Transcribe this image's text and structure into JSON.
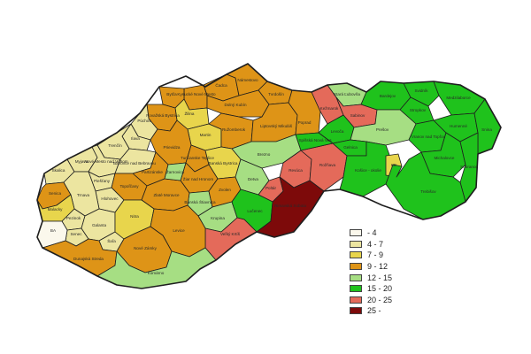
{
  "legend": {
    "items": [
      {
        "label": "- 4",
        "color": "#fbf8ec"
      },
      {
        "label": "4 - 7",
        "color": "#ece5a0"
      },
      {
        "label": "7 - 9",
        "color": "#e8d54c"
      },
      {
        "label": "9 - 12",
        "color": "#de9417"
      },
      {
        "label": "12 - 15",
        "color": "#a6de83"
      },
      {
        "label": "15 - 20",
        "color": "#1fc21c"
      },
      {
        "label": "20 - 25",
        "color": "#e46a5a"
      },
      {
        "label": "25 -",
        "color": "#7d0a0a"
      }
    ]
  },
  "districts": [
    {
      "name": "Čadca",
      "cls": 3
    },
    {
      "name": "Kysucké Nové Mesto",
      "cls": 3
    },
    {
      "name": "Námestovo",
      "cls": 3
    },
    {
      "name": "Tvrdošín",
      "cls": 3
    },
    {
      "name": "Bytča",
      "cls": 3
    },
    {
      "name": "Žilina",
      "cls": 2
    },
    {
      "name": "Dolný Kubín",
      "cls": 3
    },
    {
      "name": "Považská Bystrica",
      "cls": 3
    },
    {
      "name": "Púchov",
      "cls": 1
    },
    {
      "name": "Martin",
      "cls": 2
    },
    {
      "name": "Ružomberok",
      "cls": 3
    },
    {
      "name": "Liptovský Mikuláš",
      "cls": 3
    },
    {
      "name": "Poprad",
      "cls": 3
    },
    {
      "name": "Kežmarok",
      "cls": 6
    },
    {
      "name": "Stará Ľubovňa",
      "cls": 4
    },
    {
      "name": "Sabinov",
      "cls": 6
    },
    {
      "name": "Bardejov",
      "cls": 5
    },
    {
      "name": "Svidník",
      "cls": 5
    },
    {
      "name": "Stropkov",
      "cls": 5
    },
    {
      "name": "Medzilaborce",
      "cls": 5
    },
    {
      "name": "Ilava",
      "cls": 1
    },
    {
      "name": "Trenčín",
      "cls": 1
    },
    {
      "name": "Prievidza",
      "cls": 3
    },
    {
      "name": "Turčianske Teplice",
      "cls": 3
    },
    {
      "name": "Banská Bystrica",
      "cls": 2
    },
    {
      "name": "Brezno",
      "cls": 4
    },
    {
      "name": "Levoča",
      "cls": 5
    },
    {
      "name": "Prešov",
      "cls": 4
    },
    {
      "name": "Vranov nad Topľou",
      "cls": 5
    },
    {
      "name": "Humenné",
      "cls": 5
    },
    {
      "name": "Snina",
      "cls": 5
    },
    {
      "name": "Skalica",
      "cls": 1
    },
    {
      "name": "Myjava",
      "cls": 1
    },
    {
      "name": "Nové Mesto nad Váhom",
      "cls": 1
    },
    {
      "name": "Bánovce nad Bebravou",
      "cls": 1
    },
    {
      "name": "Partizánske",
      "cls": 3
    },
    {
      "name": "Žiar nad Hronom",
      "cls": 3
    },
    {
      "name": "Banská Štiavnica",
      "cls": 4
    },
    {
      "name": "Zvolen",
      "cls": 3
    },
    {
      "name": "Detva",
      "cls": 4
    },
    {
      "name": "Revúca",
      "cls": 6
    },
    {
      "name": "Rožňava",
      "cls": 6
    },
    {
      "name": "Spišská Nová Ves",
      "cls": 5
    },
    {
      "name": "Gelnica",
      "cls": 5
    },
    {
      "name": "Košice - okolie",
      "cls": 5
    },
    {
      "name": "KE",
      "cls": 2
    },
    {
      "name": "Michalovce",
      "cls": 5
    },
    {
      "name": "Sobrance",
      "cls": 5
    },
    {
      "name": "Trebišov",
      "cls": 5
    },
    {
      "name": "Senica",
      "cls": 3
    },
    {
      "name": "Piešťany",
      "cls": 1
    },
    {
      "name": "Topoľčany",
      "cls": 3
    },
    {
      "name": "Hlohovec",
      "cls": 1
    },
    {
      "name": "Trnava",
      "cls": 1
    },
    {
      "name": "Malacky",
      "cls": 2
    },
    {
      "name": "Pezinok",
      "cls": 1
    },
    {
      "name": "Senec",
      "cls": 1
    },
    {
      "name": "BA",
      "cls": 0
    },
    {
      "name": "Galanta",
      "cls": 1
    },
    {
      "name": "Šaľa",
      "cls": 1
    },
    {
      "name": "Zlaté Moravce",
      "cls": 3
    },
    {
      "name": "Nitra",
      "cls": 2
    },
    {
      "name": "Žarnovica",
      "cls": 4
    },
    {
      "name": "Krupina",
      "cls": 4
    },
    {
      "name": "Poltár",
      "cls": 6
    },
    {
      "name": "Lučenec",
      "cls": 5
    },
    {
      "name": "Veľký Krtíš",
      "cls": 6
    },
    {
      "name": "Rimavská Sobota",
      "cls": 7
    },
    {
      "name": "Dunajská Streda",
      "cls": 3
    },
    {
      "name": "Levice",
      "cls": 3
    },
    {
      "name": "Nové Zámky",
      "cls": 3
    },
    {
      "name": "Komárno",
      "cls": 4
    }
  ]
}
